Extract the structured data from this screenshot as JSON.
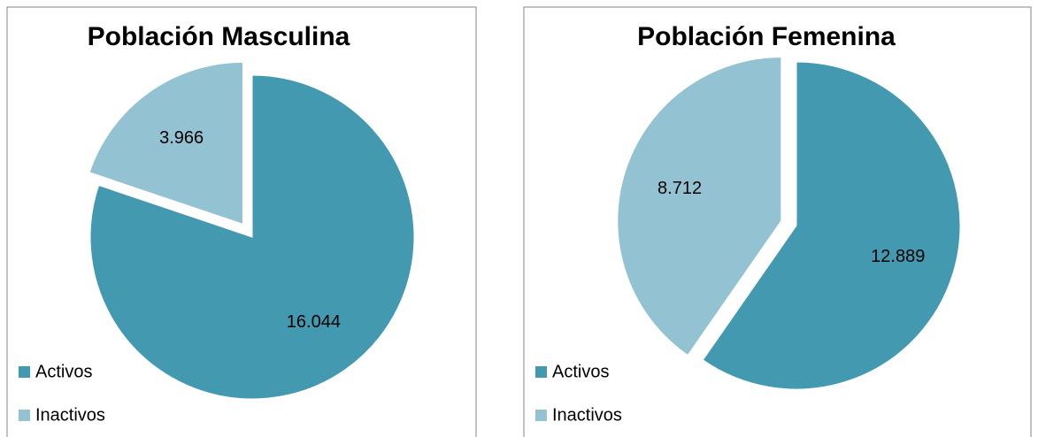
{
  "chart_data": [
    {
      "type": "pie",
      "title": "Población Masculina",
      "categories": [
        "Activos",
        "Inactivos"
      ],
      "values": [
        16044,
        3966
      ],
      "value_labels": [
        "16.044",
        "3.966"
      ],
      "colors": [
        "#4399b0",
        "#93c3d3"
      ],
      "legend": "bottom-left"
    },
    {
      "type": "pie",
      "title": "Población Femenina",
      "categories": [
        "Activos",
        "Inactivos"
      ],
      "values": [
        12889,
        8712
      ],
      "value_labels": [
        "12.889",
        "8.712"
      ],
      "colors": [
        "#4399b0",
        "#93c3d3"
      ],
      "legend": "bottom-left"
    }
  ]
}
